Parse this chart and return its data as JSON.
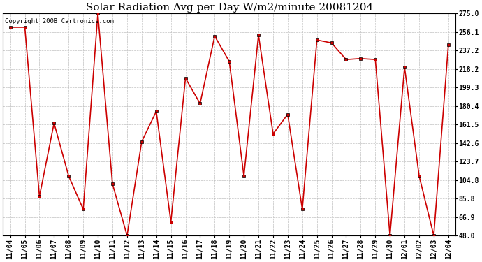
{
  "title": "Solar Radiation Avg per Day W/m2/minute 20081204",
  "copyright_text": "Copyright 2008 Cartronics.com",
  "dates": [
    "11/04",
    "11/05",
    "11/06",
    "11/07",
    "11/08",
    "11/09",
    "11/10",
    "11/11",
    "11/12",
    "11/13",
    "11/14",
    "11/15",
    "11/16",
    "11/17",
    "11/18",
    "11/19",
    "11/20",
    "11/21",
    "11/22",
    "11/23",
    "11/24",
    "11/25",
    "11/26",
    "11/27",
    "11/28",
    "11/29",
    "11/30",
    "12/01",
    "12/02",
    "12/03",
    "12/04"
  ],
  "values": [
    261.0,
    261.0,
    88.0,
    163.0,
    109.0,
    75.0,
    275.0,
    101.0,
    48.0,
    144.0,
    175.0,
    62.0,
    209.0,
    183.0,
    252.0,
    226.0,
    109.0,
    253.0,
    152.0,
    172.0,
    75.0,
    248.0,
    245.0,
    228.0,
    229.0,
    228.0,
    48.0,
    220.0,
    109.0,
    48.0,
    243.0
  ],
  "line_color": "#cc0000",
  "bg_color": "#ffffff",
  "grid_color": "#c0c0c0",
  "yticks": [
    48.0,
    66.9,
    85.8,
    104.8,
    123.7,
    142.6,
    161.5,
    180.4,
    199.3,
    218.2,
    237.2,
    256.1,
    275.0
  ],
  "title_fontsize": 11,
  "tick_fontsize": 7,
  "copyright_fontsize": 6.5,
  "ymin": 48.0,
  "ymax": 275.0
}
